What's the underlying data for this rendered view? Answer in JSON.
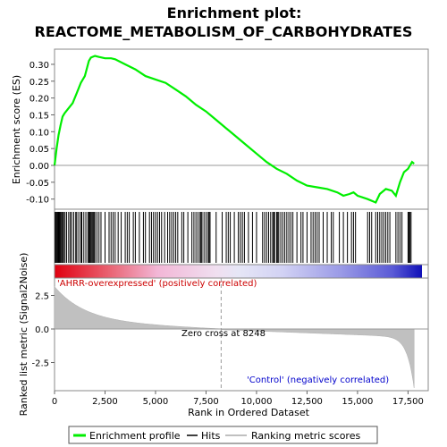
{
  "title_line1": "Enrichment plot:",
  "title_line2": "REACTOME_METABOLISM_OF_CARBOHYDRATES",
  "es_panel": {
    "ylabel": "Enrichment score (ES)",
    "yticks": [
      "0.30",
      "0.25",
      "0.20",
      "0.15",
      "0.10",
      "0.05",
      "0.00",
      "-0.05",
      "-0.10"
    ]
  },
  "metric_panel": {
    "ylabel_line1": "Ranked list metric (Signal2Noise)",
    "yticks": [
      "2.5",
      "0.0",
      "-2.5"
    ],
    "zero_cross_label": "Zero cross at 8248",
    "positive_label": "'AHRR-overexpressed' (positively correlated)",
    "negative_label": "'Control' (negatively correlated)"
  },
  "xaxis": {
    "label": "Rank in Ordered Dataset",
    "ticks": [
      "0",
      "2,500",
      "5,000",
      "7,500",
      "10,000",
      "12,500",
      "15,000",
      "17,500"
    ]
  },
  "legend": {
    "items": [
      {
        "label": "Enrichment profile",
        "color": "#00ee00"
      },
      {
        "label": "Hits",
        "color": "#000000"
      },
      {
        "label": "Ranking metric scores",
        "color": "#c0c0c0"
      }
    ]
  },
  "colors": {
    "profile": "#00ee00",
    "hits": "#000000",
    "metric_fill": "#c0c0c0",
    "positive_text": "#cc0000",
    "negative_text": "#0000cc"
  },
  "chart_data": {
    "type": "line",
    "n_genes": 17800,
    "zero_cross": 8248,
    "xlim": [
      0,
      18500
    ],
    "es_ylim": [
      -0.13,
      0.345
    ],
    "metric_ylim": [
      -4.6,
      3.8
    ],
    "enrichment_profile": {
      "x": [
        0,
        100,
        200,
        300,
        400,
        500,
        700,
        900,
        1100,
        1300,
        1500,
        1700,
        1800,
        2000,
        2200,
        2500,
        2800,
        3000,
        3500,
        4000,
        4500,
        5000,
        5500,
        6000,
        6500,
        7000,
        7500,
        8000,
        8500,
        9000,
        9500,
        10000,
        10500,
        11000,
        11500,
        12000,
        12500,
        13000,
        13500,
        14000,
        14300,
        14600,
        14800,
        15000,
        15500,
        15900,
        16100,
        16400,
        16700,
        16900,
        17100,
        17300,
        17500,
        17700,
        17800
      ],
      "y": [
        0.0,
        0.05,
        0.09,
        0.12,
        0.145,
        0.155,
        0.17,
        0.185,
        0.215,
        0.245,
        0.265,
        0.31,
        0.32,
        0.325,
        0.322,
        0.318,
        0.318,
        0.315,
        0.3,
        0.285,
        0.265,
        0.255,
        0.245,
        0.225,
        0.205,
        0.18,
        0.16,
        0.135,
        0.11,
        0.085,
        0.06,
        0.035,
        0.01,
        -0.01,
        -0.025,
        -0.045,
        -0.06,
        -0.065,
        -0.07,
        -0.08,
        -0.09,
        -0.085,
        -0.08,
        -0.09,
        -0.1,
        -0.11,
        -0.085,
        -0.07,
        -0.075,
        -0.09,
        -0.05,
        -0.02,
        -0.01,
        0.01,
        0.005
      ]
    },
    "hits": [
      30,
      60,
      100,
      140,
      180,
      220,
      260,
      300,
      350,
      400,
      450,
      520,
      600,
      700,
      780,
      850,
      950,
      1050,
      1100,
      1200,
      1300,
      1350,
      1450,
      1550,
      1650,
      1700,
      1750,
      1800,
      1850,
      1900,
      1950,
      2000,
      2100,
      2200,
      2300,
      2500,
      2700,
      2800,
      2900,
      3000,
      3150,
      3300,
      3500,
      3600,
      3700,
      3900,
      4000,
      4200,
      4400,
      4500,
      4700,
      4800,
      4900,
      5000,
      5100,
      5200,
      5300,
      5450,
      5600,
      5700,
      5800,
      5900,
      6000,
      6100,
      6300,
      6400,
      6600,
      6800,
      6900,
      7000,
      7100,
      7200,
      7250,
      7300,
      7400,
      7500,
      7600,
      7650,
      7700,
      8000,
      8300,
      8500,
      8600,
      8700,
      8900,
      9100,
      9200,
      9300,
      9400,
      9600,
      9800,
      10000,
      10300,
      10400,
      10500,
      10600,
      10700,
      10800,
      10850,
      10900,
      11000,
      11050,
      11100,
      11200,
      11300,
      11400,
      11500,
      11600,
      11700,
      11800,
      12000,
      12200,
      12300,
      12500,
      12700,
      12800,
      12900,
      13000,
      13100,
      13300,
      13500,
      13700,
      13800,
      14100,
      14300,
      14500,
      14700,
      14800,
      14900,
      15500,
      15600,
      15700,
      15900,
      16000,
      16100,
      16200,
      16300,
      16400,
      16500,
      16600,
      16900,
      17000,
      17100,
      17200,
      17500,
      17550,
      17600,
      17650
    ]
  }
}
